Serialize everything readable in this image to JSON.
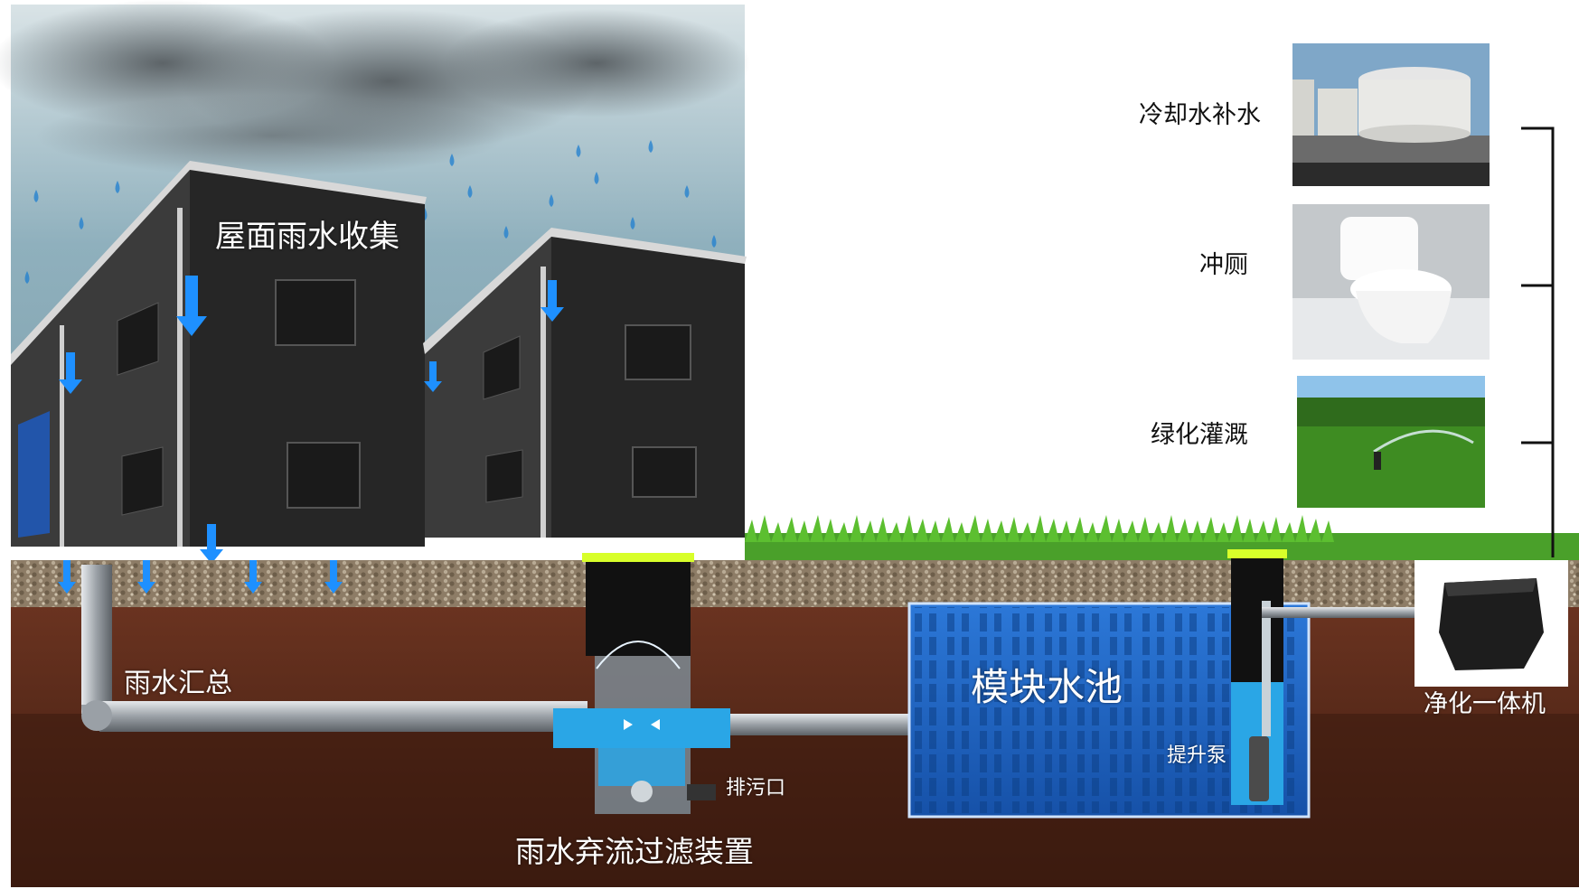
{
  "labels": {
    "roof_collection": "屋面雨水收集",
    "rain_collect_pipe": "雨水汇总",
    "diversion_filter": "雨水弃流过滤装置",
    "sewage_outlet": "排污口",
    "module_tank": "模块水池",
    "lift_pump": "提升泵",
    "purifier": "净化一体机",
    "cooling_makeup": "冷却水补水",
    "toilet_flush": "冲厕",
    "green_irrigation": "绿化灌溉"
  },
  "colors": {
    "soil": "#5a2a18",
    "soil_dark": "#3d1c10",
    "gravel": "#9a8a72",
    "grass": "#4aa02a",
    "tank_blue": "#1e66c8",
    "water": "#2aa6e6",
    "pipe": "#9aa0a6",
    "arrow_blue": "#1e90ff",
    "building": "#2b2b2b",
    "sky": "#8fb0bd",
    "cap_yellow": "#d8ff2a"
  }
}
